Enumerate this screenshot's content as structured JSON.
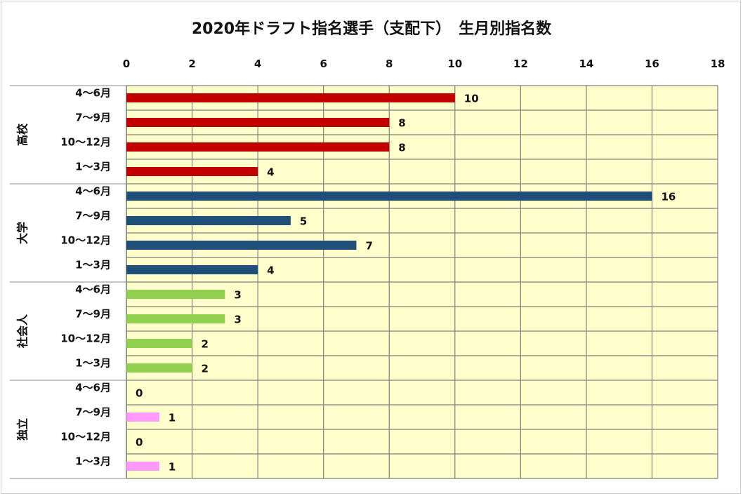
{
  "chart_data": {
    "type": "bar",
    "orientation": "horizontal",
    "title": "2020年ドラフト指名選手（支配下）　生月別指名数",
    "xlim": [
      0,
      18
    ],
    "xticks": [
      0,
      2,
      4,
      6,
      8,
      10,
      12,
      14,
      16,
      18
    ],
    "grid": true,
    "plot_background": "#ffffcc",
    "gridline_color": "#7f7f7f",
    "groups": [
      {
        "name": "高校",
        "color": "#c00000",
        "categories": [
          "4〜6月",
          "7〜9月",
          "10〜12月",
          "1〜3月"
        ],
        "values": [
          10,
          8,
          8,
          4
        ]
      },
      {
        "name": "大学",
        "color": "#1f4e79",
        "categories": [
          "4〜6月",
          "7〜9月",
          "10〜12月",
          "1〜3月"
        ],
        "values": [
          16,
          5,
          7,
          4
        ]
      },
      {
        "name": "社会人",
        "color": "#92d050",
        "categories": [
          "4〜6月",
          "7〜9月",
          "10〜12月",
          "1〜3月"
        ],
        "values": [
          3,
          3,
          2,
          2
        ]
      },
      {
        "name": "独立",
        "color": "#ff99ff",
        "categories": [
          "4〜6月",
          "7〜9月",
          "10〜12月",
          "1〜3月"
        ],
        "values": [
          0,
          1,
          0,
          1
        ]
      }
    ]
  }
}
